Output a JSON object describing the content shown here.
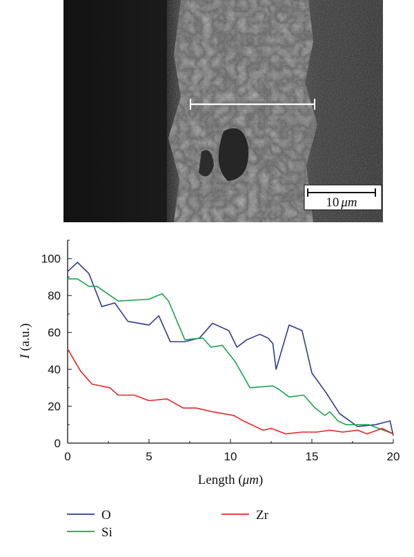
{
  "micrograph": {
    "scale_bar_value": "10",
    "scale_bar_unit": "μm"
  },
  "chart_data": {
    "type": "line",
    "xlabel_text": "Length (",
    "xlabel_unit": "μm",
    "xlabel_end": ")",
    "ylabel_var": "I",
    "ylabel_unit": " (a.u.)",
    "xlim": [
      0,
      20
    ],
    "ylim": [
      0,
      110
    ],
    "x_ticks": [
      0,
      5,
      10,
      15,
      20
    ],
    "y_ticks": [
      0,
      20,
      40,
      60,
      80,
      100
    ],
    "grid": false,
    "legend_placement": "bottom",
    "series": [
      {
        "name": "O",
        "color": "#2b3990",
        "x": [
          0,
          0.6,
          1.3,
          2.1,
          2.9,
          3.7,
          5.0,
          5.6,
          6.3,
          7.2,
          8.1,
          8.9,
          9.9,
          10.4,
          11.0,
          11.8,
          12.3,
          12.6,
          12.8,
          13.6,
          14.4,
          15.0,
          15.9,
          16.7,
          17.8,
          18.9,
          19.8,
          20.0
        ],
        "values": [
          93,
          98,
          92,
          74,
          76,
          66,
          64,
          69,
          55,
          55,
          57,
          65,
          61,
          52,
          56,
          59,
          57,
          54,
          40,
          64,
          61,
          38,
          27,
          16,
          9,
          10,
          12,
          4
        ]
      },
      {
        "name": "Si",
        "color": "#1aa24a",
        "x": [
          0,
          0.6,
          1.3,
          1.8,
          3.1,
          5.0,
          5.8,
          6.2,
          7.2,
          8.3,
          8.8,
          9.5,
          10.3,
          11.2,
          12.6,
          13.0,
          13.6,
          14.5,
          15.2,
          15.8,
          16.1,
          16.6,
          17.1,
          18.5,
          20.0
        ],
        "values": [
          89,
          89,
          85,
          85,
          77,
          78,
          81,
          77,
          56,
          57,
          52,
          53,
          44,
          30,
          31,
          29,
          25,
          26,
          19,
          15,
          17,
          12,
          10,
          10,
          5
        ]
      },
      {
        "name": "Zr",
        "color": "#e52424",
        "x": [
          0,
          0.8,
          1.5,
          2.6,
          3.1,
          4.1,
          5.0,
          6.1,
          7.1,
          7.9,
          8.9,
          10.2,
          10.8,
          12.0,
          12.5,
          13.4,
          14.4,
          15.3,
          16.1,
          16.9,
          17.8,
          18.4,
          19.3,
          20.0
        ],
        "values": [
          51,
          39,
          32,
          30,
          26,
          26,
          23,
          24,
          19,
          19,
          17,
          15,
          12,
          7,
          8,
          5,
          6,
          6,
          7,
          6,
          7,
          5,
          8,
          5
        ]
      }
    ]
  }
}
